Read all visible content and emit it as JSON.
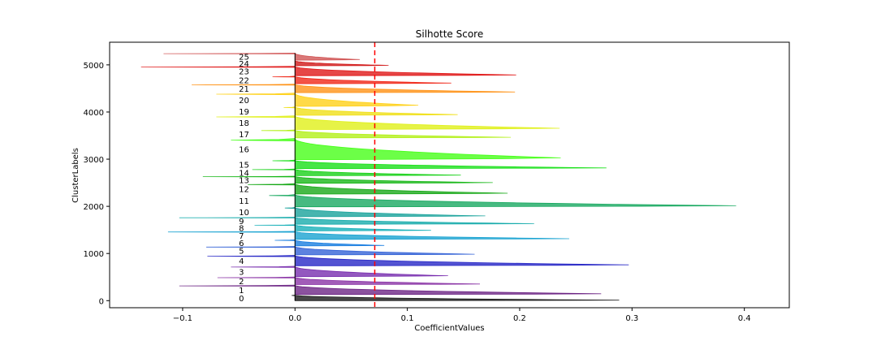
{
  "chart_data": {
    "type": "silhouette",
    "title": "Silhotte Score",
    "xlabel": "CoefficientValues",
    "ylabel": "ClusterLabels",
    "xlim": [
      -0.165,
      0.44
    ],
    "ylim": [
      -150,
      5480
    ],
    "xticks": [
      -0.1,
      0.0,
      0.1,
      0.2,
      0.3,
      0.4
    ],
    "xtick_labels": [
      "−0.1",
      "0.0",
      "0.1",
      "0.2",
      "0.3",
      "0.4"
    ],
    "yticks": [
      0,
      1000,
      2000,
      3000,
      4000,
      5000
    ],
    "ytick_labels": [
      "0",
      "1000",
      "2000",
      "3000",
      "4000",
      "5000"
    ],
    "avg_silhouette_score": 0.071,
    "avg_line_color": "#ff0000",
    "grid": false,
    "label_x": -0.05,
    "clusters": [
      {
        "label": "0",
        "y_lower": 0,
        "y_upper": 120,
        "max": 0.305,
        "min": -0.003,
        "color": "#000000"
      },
      {
        "label": "1",
        "y_lower": 130,
        "y_upper": 330,
        "max": 0.288,
        "min": -0.103,
        "color": "#5e0f78"
      },
      {
        "label": "2",
        "y_lower": 340,
        "y_upper": 500,
        "max": 0.174,
        "min": -0.069,
        "color": "#7e1f9c"
      },
      {
        "label": "3",
        "y_lower": 510,
        "y_upper": 730,
        "max": 0.144,
        "min": -0.057,
        "color": "#6a18a6"
      },
      {
        "label": "4",
        "y_lower": 740,
        "y_upper": 960,
        "max": 0.314,
        "min": -0.078,
        "color": "#1010c0"
      },
      {
        "label": "5",
        "y_lower": 970,
        "y_upper": 1150,
        "max": 0.169,
        "min": -0.079,
        "color": "#1f52d2"
      },
      {
        "label": "6",
        "y_lower": 1160,
        "y_upper": 1290,
        "max": 0.084,
        "min": -0.018,
        "color": "#0070dd"
      },
      {
        "label": "7",
        "y_lower": 1300,
        "y_upper": 1470,
        "max": 0.258,
        "min": -0.113,
        "color": "#0099cc"
      },
      {
        "label": "8",
        "y_lower": 1480,
        "y_upper": 1610,
        "max": 0.128,
        "min": -0.036,
        "color": "#00a8b2"
      },
      {
        "label": "9",
        "y_lower": 1620,
        "y_upper": 1770,
        "max": 0.225,
        "min": -0.103,
        "color": "#00a3a3"
      },
      {
        "label": "10",
        "y_lower": 1780,
        "y_upper": 1980,
        "max": 0.179,
        "min": -0.009,
        "color": "#009990"
      },
      {
        "label": "11",
        "y_lower": 1990,
        "y_upper": 2250,
        "max": 0.415,
        "min": -0.023,
        "color": "#00a050"
      },
      {
        "label": "12",
        "y_lower": 2260,
        "y_upper": 2480,
        "max": 0.2,
        "min": -0.042,
        "color": "#00a000"
      },
      {
        "label": "13",
        "y_lower": 2490,
        "y_upper": 2640,
        "max": 0.186,
        "min": -0.082,
        "color": "#00b000"
      },
      {
        "label": "14",
        "y_lower": 2650,
        "y_upper": 2790,
        "max": 0.156,
        "min": -0.038,
        "color": "#00cc00"
      },
      {
        "label": "15",
        "y_lower": 2800,
        "y_upper": 2980,
        "max": 0.293,
        "min": -0.02,
        "color": "#00dd00"
      },
      {
        "label": "16",
        "y_lower": 2990,
        "y_upper": 3440,
        "max": 0.25,
        "min": -0.057,
        "color": "#33ff00"
      },
      {
        "label": "17",
        "y_lower": 3450,
        "y_upper": 3620,
        "max": 0.203,
        "min": -0.03,
        "color": "#aaee00"
      },
      {
        "label": "18",
        "y_lower": 3630,
        "y_upper": 3920,
        "max": 0.249,
        "min": -0.07,
        "color": "#ddee00"
      },
      {
        "label": "19",
        "y_lower": 3930,
        "y_upper": 4110,
        "max": 0.153,
        "min": -0.01,
        "color": "#eedd00"
      },
      {
        "label": "20",
        "y_lower": 4120,
        "y_upper": 4400,
        "max": 0.116,
        "min": -0.07,
        "color": "#ffcc00"
      },
      {
        "label": "21",
        "y_lower": 4410,
        "y_upper": 4590,
        "max": 0.207,
        "min": -0.092,
        "color": "#ff8800"
      },
      {
        "label": "22",
        "y_lower": 4600,
        "y_upper": 4760,
        "max": 0.147,
        "min": -0.02,
        "color": "#ee1100"
      },
      {
        "label": "23",
        "y_lower": 4770,
        "y_upper": 4970,
        "max": 0.208,
        "min": -0.137,
        "color": "#dd0000"
      },
      {
        "label": "24",
        "y_lower": 4980,
        "y_upper": 5090,
        "max": 0.088,
        "min": 0.0,
        "color": "#cc0000"
      },
      {
        "label": "25",
        "y_lower": 5100,
        "y_upper": 5250,
        "max": 0.061,
        "min": -0.117,
        "color": "#cc4444"
      }
    ]
  }
}
